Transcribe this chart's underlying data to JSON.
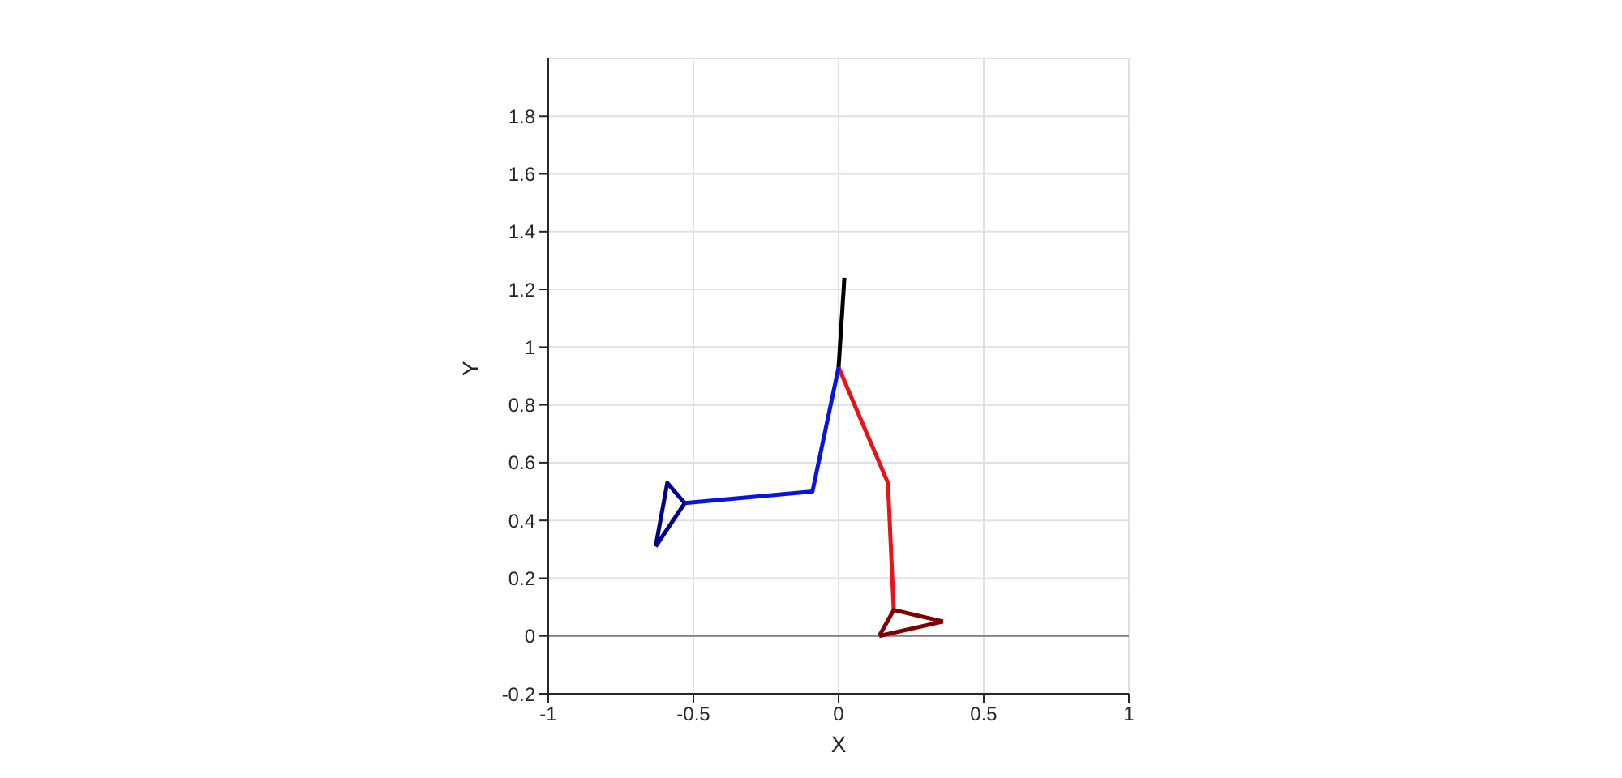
{
  "chart_data": {
    "type": "line",
    "xlabel": "X",
    "ylabel": "Y",
    "xlim": [
      -1,
      1
    ],
    "ylim": [
      -0.2,
      2
    ],
    "xticks": [
      -1,
      -0.5,
      0,
      0.5,
      1
    ],
    "yticks": [
      -0.2,
      0,
      0.2,
      0.4,
      0.6,
      0.8,
      1,
      1.2,
      1.4,
      1.6,
      1.8
    ],
    "grid": true,
    "marker": "none",
    "line_style": "solid",
    "ref_lines": [
      {
        "axis": "y",
        "value": 0,
        "color": "#808080"
      }
    ],
    "series": [
      {
        "color": "#000000",
        "x": [
          0,
          0.02
        ],
        "values": [
          0.93,
          1.24
        ]
      },
      {
        "color": "#e8141b",
        "x": [
          0,
          0.17,
          0.19
        ],
        "values": [
          0.93,
          0.53,
          0.09
        ]
      },
      {
        "color": "#800000",
        "x": [
          0.14,
          0.19,
          0.36
        ],
        "values": [
          0,
          0.09,
          0.05
        ]
      },
      {
        "color": "#800000",
        "x": [
          0.14,
          0.36
        ],
        "values": [
          0,
          0.05
        ]
      },
      {
        "color": "#0a14e0",
        "x": [
          0,
          -0.09,
          -0.53
        ],
        "values": [
          0.93,
          0.5,
          0.46
        ]
      },
      {
        "color": "#00008b",
        "x": [
          -0.63,
          -0.59,
          -0.53
        ],
        "values": [
          0.31,
          0.53,
          0.46
        ]
      },
      {
        "color": "#00008b",
        "x": [
          -0.63,
          -0.53
        ],
        "values": [
          0.31,
          0.46
        ]
      }
    ]
  }
}
